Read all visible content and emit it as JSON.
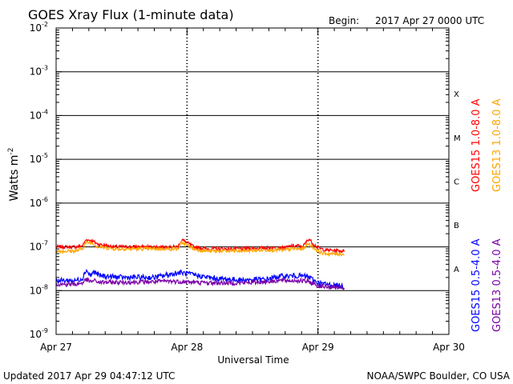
{
  "header": {
    "title": "GOES Xray Flux (1-minute data)",
    "begin_label": "Begin:",
    "begin_value": "2017 Apr 27 0000 UTC"
  },
  "footer": {
    "updated": "Updated 2017 Apr 29 04:47:12 UTC",
    "credit": "NOAA/SWPC Boulder, CO USA"
  },
  "chart_data": {
    "type": "line",
    "title": "GOES Xray Flux (1-minute data)",
    "xlabel": "Universal Time",
    "ylabel": "Watts m",
    "ylabel_superscript": "-2",
    "yscale": "log",
    "ylim": [
      1e-09,
      0.01
    ],
    "xlim_days": [
      0,
      3
    ],
    "x_ticks": [
      "Apr 27",
      "Apr 28",
      "Apr 29",
      "Apr 30"
    ],
    "y_ticks": [
      {
        "base": "10",
        "exp": "-9"
      },
      {
        "base": "10",
        "exp": "-8"
      },
      {
        "base": "10",
        "exp": "-7"
      },
      {
        "base": "10",
        "exp": "-6"
      },
      {
        "base": "10",
        "exp": "-5"
      },
      {
        "base": "10",
        "exp": "-4"
      },
      {
        "base": "10",
        "exp": "-3"
      },
      {
        "base": "10",
        "exp": "-2"
      }
    ],
    "flare_classes": [
      "A",
      "B",
      "C",
      "M",
      "X"
    ],
    "grid": "horizontal lines at flare-class thresholds",
    "legend_placement": "right",
    "series": [
      {
        "name": "GOES15 1.0-8.0 A",
        "color": "#ff0000",
        "points": [
          [
            0.0,
            1e-07
          ],
          [
            0.15,
            1e-07
          ],
          [
            0.2,
            1.05e-07
          ],
          [
            0.23,
            1.45e-07
          ],
          [
            0.27,
            1.4e-07
          ],
          [
            0.32,
            1.15e-07
          ],
          [
            0.45,
            1e-07
          ],
          [
            0.8,
            1e-07
          ],
          [
            0.93,
            1e-07
          ],
          [
            0.96,
            1.45e-07
          ],
          [
            0.99,
            1.3e-07
          ],
          [
            1.05,
            1e-07
          ],
          [
            1.15,
            9e-08
          ],
          [
            1.4,
            9e-08
          ],
          [
            1.6,
            9.5e-08
          ],
          [
            1.75,
            9.5e-08
          ],
          [
            1.8,
            1.05e-07
          ],
          [
            1.85,
            1.05e-07
          ],
          [
            1.88,
            1e-07
          ],
          [
            1.9,
            1.15e-07
          ],
          [
            1.93,
            1.55e-07
          ],
          [
            1.96,
            1.2e-07
          ],
          [
            2.0,
            9.5e-08
          ],
          [
            2.05,
            8.5e-08
          ],
          [
            2.2,
            8e-08
          ]
        ]
      },
      {
        "name": "GOES13 1.0-8.0 A",
        "color": "#ffa500",
        "points": [
          [
            0.0,
            8e-08
          ],
          [
            0.15,
            8e-08
          ],
          [
            0.2,
            9e-08
          ],
          [
            0.23,
            1.25e-07
          ],
          [
            0.27,
            1.25e-07
          ],
          [
            0.32,
            1e-07
          ],
          [
            0.45,
            9e-08
          ],
          [
            0.8,
            9e-08
          ],
          [
            0.93,
            9e-08
          ],
          [
            0.96,
            1.25e-07
          ],
          [
            0.99,
            1.15e-07
          ],
          [
            1.05,
            9e-08
          ],
          [
            1.15,
            8e-08
          ],
          [
            1.4,
            8e-08
          ],
          [
            1.6,
            8.5e-08
          ],
          [
            1.75,
            8.5e-08
          ],
          [
            1.8,
            9e-08
          ],
          [
            1.85,
            9e-08
          ],
          [
            1.88,
            8.8e-08
          ],
          [
            1.9,
            1e-07
          ],
          [
            1.93,
            1.2e-07
          ],
          [
            1.96,
            1e-07
          ],
          [
            2.0,
            8e-08
          ],
          [
            2.05,
            7e-08
          ],
          [
            2.2,
            6.8e-08
          ]
        ]
      },
      {
        "name": "GOES15 0.5-4.0 A",
        "color": "#0000ff",
        "points": [
          [
            0.0,
            1.7e-08
          ],
          [
            0.15,
            1.7e-08
          ],
          [
            0.2,
            1.9e-08
          ],
          [
            0.23,
            3e-08
          ],
          [
            0.26,
            2.2e-08
          ],
          [
            0.29,
            2.7e-08
          ],
          [
            0.33,
            2.2e-08
          ],
          [
            0.5,
            2e-08
          ],
          [
            0.75,
            2e-08
          ],
          [
            0.85,
            2.3e-08
          ],
          [
            0.95,
            2.6e-08
          ],
          [
            1.05,
            2.3e-08
          ],
          [
            1.2,
            1.9e-08
          ],
          [
            1.4,
            1.75e-08
          ],
          [
            1.6,
            1.8e-08
          ],
          [
            1.7,
            2.1e-08
          ],
          [
            1.85,
            2.2e-08
          ],
          [
            1.93,
            2.05e-08
          ],
          [
            2.0,
            1.5e-08
          ],
          [
            2.1,
            1.35e-08
          ],
          [
            2.2,
            1.25e-08
          ]
        ]
      },
      {
        "name": "GOES13 0.5-4.0 A",
        "color": "#7b00a8",
        "points": [
          [
            0.0,
            1.4e-08
          ],
          [
            0.15,
            1.4e-08
          ],
          [
            0.2,
            1.5e-08
          ],
          [
            0.23,
            1.8e-08
          ],
          [
            0.26,
            1.6e-08
          ],
          [
            0.29,
            1.7e-08
          ],
          [
            0.33,
            1.55e-08
          ],
          [
            0.5,
            1.55e-08
          ],
          [
            0.75,
            1.6e-08
          ],
          [
            0.85,
            1.65e-08
          ],
          [
            0.95,
            1.6e-08
          ],
          [
            1.05,
            1.55e-08
          ],
          [
            1.2,
            1.5e-08
          ],
          [
            1.4,
            1.5e-08
          ],
          [
            1.6,
            1.6e-08
          ],
          [
            1.7,
            1.7e-08
          ],
          [
            1.85,
            1.7e-08
          ],
          [
            1.93,
            1.6e-08
          ],
          [
            2.0,
            1.3e-08
          ],
          [
            2.1,
            1.2e-08
          ],
          [
            2.2,
            1.15e-08
          ]
        ]
      }
    ]
  }
}
